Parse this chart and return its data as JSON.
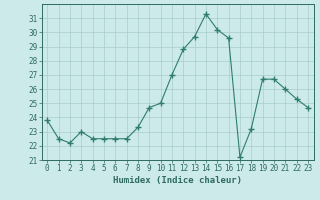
{
  "x": [
    0,
    1,
    2,
    3,
    4,
    5,
    6,
    7,
    8,
    9,
    10,
    11,
    12,
    13,
    14,
    15,
    16,
    17,
    18,
    19,
    20,
    21,
    22,
    23
  ],
  "y": [
    23.8,
    22.5,
    22.2,
    23.0,
    22.5,
    22.5,
    22.5,
    22.5,
    23.3,
    24.7,
    25.0,
    27.0,
    28.8,
    29.7,
    31.3,
    30.2,
    29.6,
    21.2,
    23.2,
    26.7,
    26.7,
    26.0,
    25.3,
    24.7
  ],
  "line_color": "#2e7d6e",
  "marker": "+",
  "marker_size": 4,
  "bg_color": "#cceaea",
  "grid_color": "#aacccc",
  "xlabel": "Humidex (Indice chaleur)",
  "ylim": [
    21,
    32
  ],
  "xlim": [
    -0.5,
    23.5
  ],
  "yticks": [
    21,
    22,
    23,
    24,
    25,
    26,
    27,
    28,
    29,
    30,
    31
  ],
  "xticks": [
    0,
    1,
    2,
    3,
    4,
    5,
    6,
    7,
    8,
    9,
    10,
    11,
    12,
    13,
    14,
    15,
    16,
    17,
    18,
    19,
    20,
    21,
    22,
    23
  ],
  "tick_color": "#2e6b60",
  "label_fontsize": 6.5,
  "tick_fontsize": 5.5
}
